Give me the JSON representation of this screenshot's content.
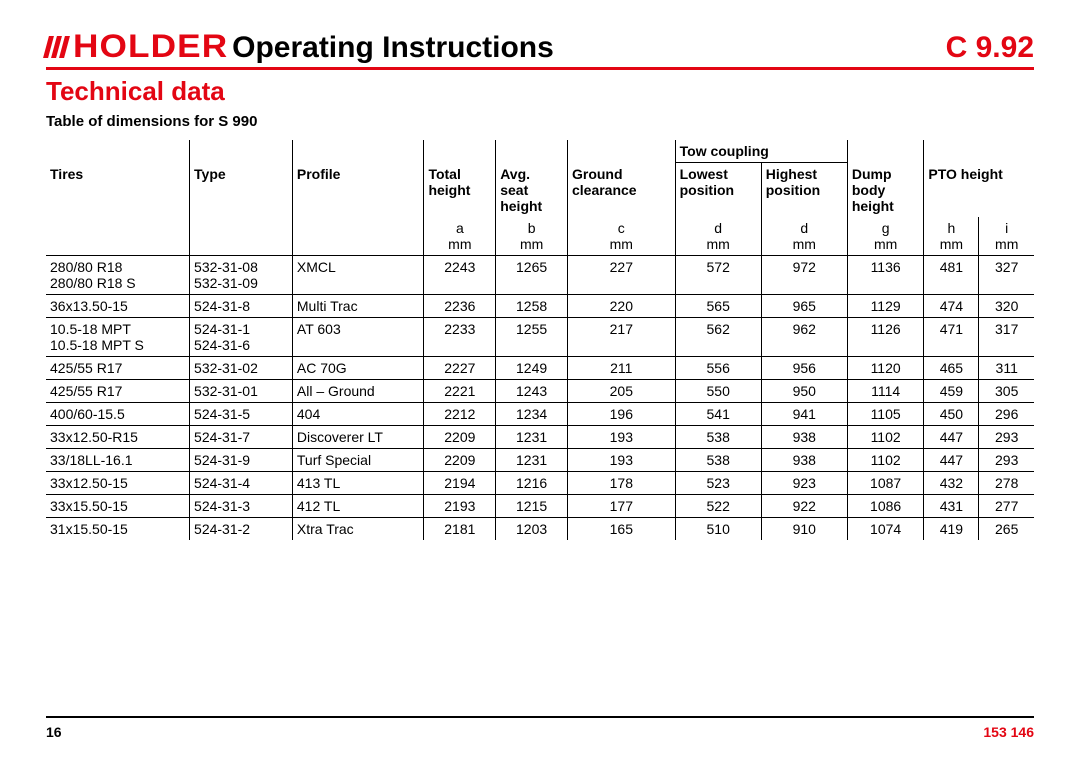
{
  "header": {
    "logo_text": "HOLDER",
    "title": "Operating Instructions",
    "page_code": "C 9.92"
  },
  "section_title": "Technical  data",
  "table_title": "Table of dimensions for S 990",
  "colors": {
    "accent": "#e30613",
    "text": "#000000",
    "background": "#ffffff",
    "rule": "#000000"
  },
  "typography": {
    "base_font": "Arial, Helvetica, sans-serif",
    "body_size_pt": 10,
    "header_size_pt": 22,
    "section_size_pt": 19
  },
  "table": {
    "group_header": "Tow coupling",
    "columns": [
      {
        "key": "tires",
        "label": "Tires",
        "unit_letter": "",
        "unit": ""
      },
      {
        "key": "type",
        "label": "Type",
        "unit_letter": "",
        "unit": ""
      },
      {
        "key": "profile",
        "label": "Profile",
        "unit_letter": "",
        "unit": ""
      },
      {
        "key": "th",
        "label": "Total height",
        "unit_letter": "a",
        "unit": "mm"
      },
      {
        "key": "sh",
        "label": "Avg. seat height",
        "unit_letter": "b",
        "unit": "mm"
      },
      {
        "key": "gc",
        "label": "Ground clearance",
        "unit_letter": "c",
        "unit": "mm"
      },
      {
        "key": "lp",
        "label": "Lowest position",
        "unit_letter": "d",
        "unit": "mm"
      },
      {
        "key": "hp",
        "label": "Highest position",
        "unit_letter": "d",
        "unit": "mm"
      },
      {
        "key": "db",
        "label": "Dump body height",
        "unit_letter": "g",
        "unit": "mm"
      },
      {
        "key": "ph1",
        "label": "PTO height",
        "unit_letter": "h",
        "unit": "mm"
      },
      {
        "key": "ph2",
        "label": "",
        "unit_letter": "i",
        "unit": "mm"
      }
    ],
    "header_labels": {
      "tires": "Tires",
      "type": "Type",
      "profile": "Profile",
      "th1": "Total",
      "th2": "height",
      "sh1": "Avg.",
      "sh2": "seat",
      "sh3": "height",
      "gc1": "Ground",
      "gc2": "clearance",
      "lp1": "Lowest",
      "lp2": "position",
      "hp1": "Highest",
      "hp2": "position",
      "db1": "Dump",
      "db2": "body",
      "db3": "height",
      "ph": "PTO height"
    },
    "unit_row": {
      "th": "a",
      "sh": "b",
      "gc": "c",
      "lp": "d",
      "hp": "d",
      "db": "g",
      "ph1": "h",
      "ph2": "i",
      "mm": "mm"
    },
    "rows": [
      {
        "tires": "280/80 R18\n280/80 R18 S",
        "type": "532-31-08\n532-31-09",
        "profile": "XMCL",
        "th": 2243,
        "sh": 1265,
        "gc": 227,
        "lp": 572,
        "hp": 972,
        "db": 1136,
        "ph1": 481,
        "ph2": 327
      },
      {
        "tires": "36x13.50-15",
        "type": "524-31-8",
        "profile": "Multi Trac",
        "th": 2236,
        "sh": 1258,
        "gc": 220,
        "lp": 565,
        "hp": 965,
        "db": 1129,
        "ph1": 474,
        "ph2": 320
      },
      {
        "tires": "10.5-18 MPT\n10.5-18 MPT S",
        "type": "524-31-1\n524-31-6",
        "profile": "AT 603",
        "th": 2233,
        "sh": 1255,
        "gc": 217,
        "lp": 562,
        "hp": 962,
        "db": 1126,
        "ph1": 471,
        "ph2": 317
      },
      {
        "tires": "425/55 R17",
        "type": "532-31-02",
        "profile": "AC 70G",
        "th": 2227,
        "sh": 1249,
        "gc": 211,
        "lp": 556,
        "hp": 956,
        "db": 1120,
        "ph1": 465,
        "ph2": 311
      },
      {
        "tires": "425/55 R17",
        "type": "532-31-01",
        "profile": "All – Ground",
        "th": 2221,
        "sh": 1243,
        "gc": 205,
        "lp": 550,
        "hp": 950,
        "db": 1114,
        "ph1": 459,
        "ph2": 305
      },
      {
        "tires": "400/60-15.5",
        "type": "524-31-5",
        "profile": "404",
        "th": 2212,
        "sh": 1234,
        "gc": 196,
        "lp": 541,
        "hp": 941,
        "db": 1105,
        "ph1": 450,
        "ph2": 296
      },
      {
        "tires": "33x12.50-R15",
        "type": "524-31-7",
        "profile": "Discoverer LT",
        "th": 2209,
        "sh": 1231,
        "gc": 193,
        "lp": 538,
        "hp": 938,
        "db": 1102,
        "ph1": 447,
        "ph2": 293
      },
      {
        "tires": "33/18LL-16.1",
        "type": "524-31-9",
        "profile": "Turf Special",
        "th": 2209,
        "sh": 1231,
        "gc": 193,
        "lp": 538,
        "hp": 938,
        "db": 1102,
        "ph1": 447,
        "ph2": 293
      },
      {
        "tires": "33x12.50-15",
        "type": "524-31-4",
        "profile": "413 TL",
        "th": 2194,
        "sh": 1216,
        "gc": 178,
        "lp": 523,
        "hp": 923,
        "db": 1087,
        "ph1": 432,
        "ph2": 278
      },
      {
        "tires": "33x15.50-15",
        "type": "524-31-3",
        "profile": "412 TL",
        "th": 2193,
        "sh": 1215,
        "gc": 177,
        "lp": 522,
        "hp": 922,
        "db": 1086,
        "ph1": 431,
        "ph2": 277
      },
      {
        "tires": "31x15.50-15",
        "type": "524-31-2",
        "profile": "Xtra Trac",
        "th": 2181,
        "sh": 1203,
        "gc": 165,
        "lp": 510,
        "hp": 910,
        "db": 1074,
        "ph1": 419,
        "ph2": 265
      }
    ]
  },
  "footer": {
    "page_num": "16",
    "doc_num": "153 146"
  }
}
